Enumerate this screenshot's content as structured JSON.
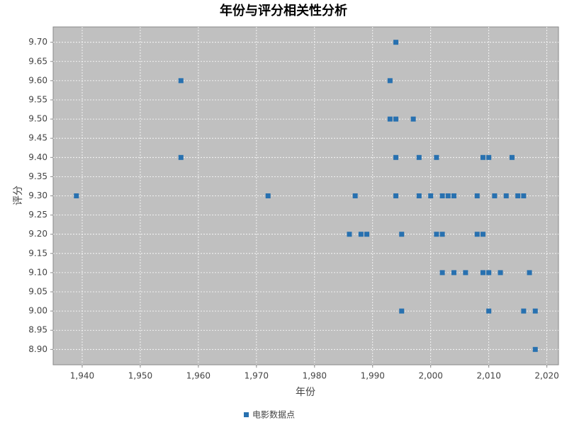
{
  "chart_data": {
    "type": "scatter",
    "title": "年份与评分相关性分析",
    "x_label": "年份",
    "y_label": "评分",
    "series": [
      {
        "name": "电影数据点",
        "color": "#2871b0",
        "x": [
          1939,
          1957,
          1957,
          1972,
          1987,
          1986,
          1988,
          1989,
          1994,
          1993,
          1993,
          1994,
          1997,
          1994,
          1998,
          2001,
          2009,
          2010,
          2014,
          1994,
          1998,
          2000,
          2002,
          2003,
          2004,
          2008,
          2011,
          2013,
          2015,
          2016,
          1995,
          2001,
          2002,
          2008,
          2009,
          2002,
          2004,
          2006,
          2009,
          2010,
          2012,
          2017,
          1995,
          2010,
          2016,
          2018,
          2018
        ],
        "values": [
          9.3,
          9.6,
          9.4,
          9.3,
          9.3,
          9.2,
          9.2,
          9.2,
          9.7,
          9.6,
          9.5,
          9.5,
          9.5,
          9.4,
          9.4,
          9.4,
          9.4,
          9.4,
          9.4,
          9.3,
          9.3,
          9.3,
          9.3,
          9.3,
          9.3,
          9.3,
          9.3,
          9.3,
          9.3,
          9.3,
          9.2,
          9.2,
          9.2,
          9.2,
          9.2,
          9.1,
          9.1,
          9.1,
          9.1,
          9.1,
          9.1,
          9.1,
          9.0,
          9.0,
          9.0,
          9.0,
          8.9
        ]
      }
    ],
    "xlim": [
      1935,
      2022
    ],
    "ylim": [
      8.86,
      9.74
    ],
    "xticks": [
      {
        "value": 1940,
        "label": "1,940"
      },
      {
        "value": 1950,
        "label": "1,950"
      },
      {
        "value": 1960,
        "label": "1,960"
      },
      {
        "value": 1970,
        "label": "1,970"
      },
      {
        "value": 1980,
        "label": "1,980"
      },
      {
        "value": 1990,
        "label": "1,990"
      },
      {
        "value": 2000,
        "label": "2,000"
      },
      {
        "value": 2010,
        "label": "2,010"
      },
      {
        "value": 2020,
        "label": "2,020"
      }
    ],
    "yticks": [
      {
        "value": 8.9,
        "label": "8.90"
      },
      {
        "value": 8.95,
        "label": "8.95"
      },
      {
        "value": 9.0,
        "label": "9.00"
      },
      {
        "value": 9.05,
        "label": "9.05"
      },
      {
        "value": 9.1,
        "label": "9.10"
      },
      {
        "value": 9.15,
        "label": "9.15"
      },
      {
        "value": 9.2,
        "label": "9.20"
      },
      {
        "value": 9.25,
        "label": "9.25"
      },
      {
        "value": 9.3,
        "label": "9.30"
      },
      {
        "value": 9.35,
        "label": "9.35"
      },
      {
        "value": 9.4,
        "label": "9.40"
      },
      {
        "value": 9.45,
        "label": "9.45"
      },
      {
        "value": 9.5,
        "label": "9.50"
      },
      {
        "value": 9.55,
        "label": "9.55"
      },
      {
        "value": 9.6,
        "label": "9.60"
      },
      {
        "value": 9.65,
        "label": "9.65"
      },
      {
        "value": 9.7,
        "label": "9.70"
      }
    ],
    "grid": true,
    "legend": "bottom"
  }
}
